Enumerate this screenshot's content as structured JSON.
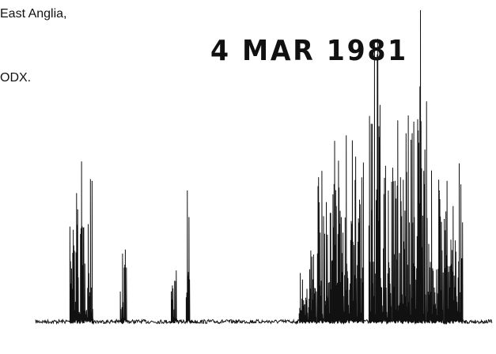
{
  "texts": {
    "line1": "East Anglia,",
    "line2": "ODX.",
    "stamp": "4 MAR 1981"
  }
}
